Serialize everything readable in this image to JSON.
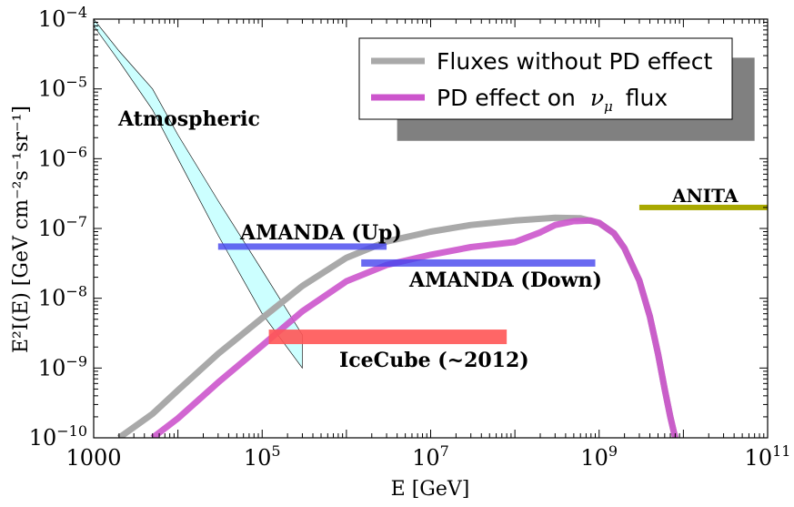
{
  "chart_data": {
    "type": "line",
    "xscale": "log",
    "yscale": "log",
    "xlim": [
      1000,
      100000000000
    ],
    "ylim": [
      1e-10,
      0.0001
    ],
    "xlabel": "E [GeV]",
    "ylabel": "E²I(E)  [GeV cm⁻²s⁻¹sr⁻¹]",
    "x_ticks": [
      {
        "value": 1000,
        "label": "1000"
      },
      {
        "value": 100000,
        "label_base": "10",
        "label_exp": "5"
      },
      {
        "value": 10000000,
        "label_base": "10",
        "label_exp": "7"
      },
      {
        "value": 1000000000,
        "label_base": "10",
        "label_exp": "9"
      },
      {
        "value": 100000000000,
        "label_base": "10",
        "label_exp": "11"
      }
    ],
    "y_ticks": [
      {
        "value": 1e-10,
        "label_base": "10",
        "label_exp": "−10"
      },
      {
        "value": 1e-09,
        "label_base": "10",
        "label_exp": "−9"
      },
      {
        "value": 1e-08,
        "label_base": "10",
        "label_exp": "−8"
      },
      {
        "value": 1e-07,
        "label_base": "10",
        "label_exp": "−7"
      },
      {
        "value": 1e-06,
        "label_base": "10",
        "label_exp": "−6"
      },
      {
        "value": 1e-05,
        "label_base": "10",
        "label_exp": "−5"
      },
      {
        "value": 0.0001,
        "label_base": "10",
        "label_exp": "−4"
      }
    ],
    "legend": {
      "position": "top-right",
      "entries": [
        {
          "series": "no_pd",
          "label": "Fluxes without PD effect"
        },
        {
          "series": "pd",
          "label_prefix": "PD effect on ",
          "label_symbol": "ν",
          "label_sub": "μ",
          "label_suffix": " flux"
        }
      ]
    },
    "series": [
      {
        "id": "no_pd",
        "name": "Fluxes without PD effect",
        "color": "#a9a9a9",
        "x": [
          2000,
          5000,
          10000,
          30000,
          100000,
          300000,
          1000000,
          3000000,
          10000000,
          30000000,
          100000000,
          300000000,
          600000000,
          1000000000,
          1500000000,
          2000000000,
          3000000000,
          4000000000,
          5000000000,
          6000000000,
          7000000000,
          8000000000
        ],
        "y": [
          1e-10,
          2.2e-10,
          4.8e-10,
          1.6e-09,
          5.2e-09,
          1.5e-08,
          3.8e-08,
          6.5e-08,
          9e-08,
          1.12e-07,
          1.3e-07,
          1.42e-07,
          1.4e-07,
          1.2e-07,
          8.5e-08,
          5.2e-08,
          1.8e-08,
          5.5e-09,
          1.6e-09,
          5e-10,
          2e-10,
          1e-10
        ]
      },
      {
        "id": "pd",
        "name": "PD effect on νμ flux",
        "color": "#cc55cc",
        "x": [
          5000,
          10000,
          30000,
          100000,
          300000,
          1000000,
          3000000,
          10000000,
          30000000,
          100000000,
          200000000,
          300000000,
          500000000,
          800000000,
          1000000000,
          1500000000,
          2000000000,
          3000000000,
          4000000000,
          5000000000,
          6000000000,
          7000000000,
          8000000000
        ],
        "y": [
          1e-10,
          1.9e-10,
          6.2e-10,
          2.1e-09,
          6.5e-09,
          1.75e-08,
          3e-08,
          4.2e-08,
          5.4e-08,
          6.4e-08,
          8.8e-08,
          1.12e-07,
          1.27e-07,
          1.3e-07,
          1.2e-07,
          8.5e-08,
          5.2e-08,
          1.8e-08,
          5.5e-09,
          1.6e-09,
          5e-10,
          2e-10,
          1e-10
        ]
      }
    ],
    "bands": [
      {
        "id": "atmospheric",
        "label": "Atmospheric",
        "color": "#ccffff",
        "upper": {
          "x": [
            1000,
            2000,
            5000,
            10000,
            30000,
            100000,
            300000
          ],
          "y": [
            0.0001,
            3.5e-05,
            1e-05,
            2.2e-06,
            2.5e-07,
            2.5e-08,
            3e-09
          ]
        },
        "lower": {
          "x": [
            1000,
            2000,
            5000,
            10000,
            30000,
            100000,
            300000
          ],
          "y": [
            8e-05,
            2.5e-05,
            5e-06,
            1e-06,
            8e-08,
            6e-09,
            1e-09
          ]
        }
      }
    ],
    "limits": [
      {
        "id": "amanda_up",
        "label": "AMANDA (Up)",
        "x": [
          30000,
          3000000
        ],
        "y": 5.5e-08,
        "color": "#4444ee"
      },
      {
        "id": "amanda_down",
        "label": "AMANDA (Down)",
        "x": [
          1500000,
          900000000
        ],
        "y": 3.2e-08,
        "color": "#4444ee"
      },
      {
        "id": "icecube",
        "label": "IceCube (~2012)",
        "x": [
          120000,
          80000000
        ],
        "y": 2.8e-09,
        "color": "#ff5555"
      },
      {
        "id": "anita",
        "label": "ANITA",
        "x": [
          3000000000,
          100000000000
        ],
        "y": 2e-07,
        "color": "#a8a800"
      }
    ],
    "regions": [
      {
        "id": "gray_box",
        "x": [
          4000000,
          70000000000
        ],
        "y": [
          1.8e-06,
          2.8e-05
        ],
        "color": "#808080"
      }
    ]
  }
}
